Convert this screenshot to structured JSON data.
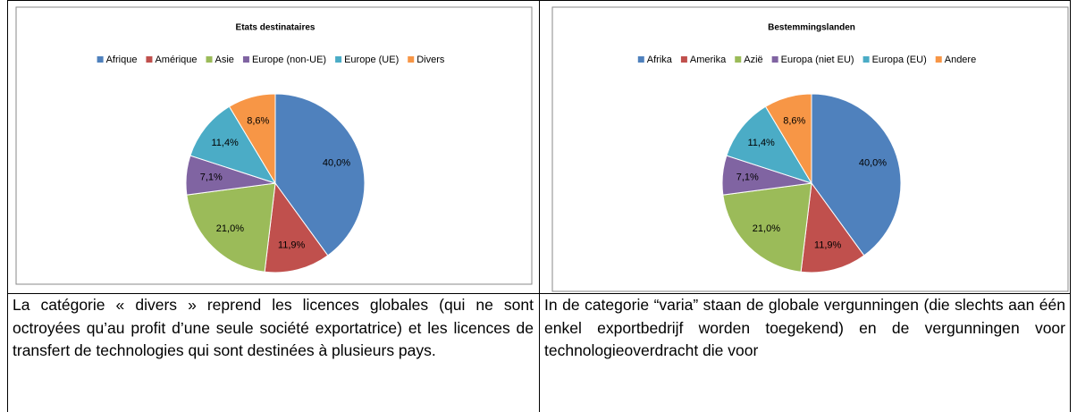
{
  "chart_data": [
    {
      "type": "pie",
      "title": "Etats destinataires",
      "categories": [
        "Afrique",
        "Amérique",
        "Asie",
        "Europe (non-UE)",
        "Europe (UE)",
        "Divers"
      ],
      "values": [
        40.0,
        11.9,
        21.0,
        7.1,
        11.4,
        8.6
      ],
      "value_labels": [
        "40,0%",
        "11,9%",
        "21,0%",
        "7,1%",
        "11,4%",
        "8,6%"
      ],
      "colors": [
        "#4F81BD",
        "#C0504D",
        "#9BBB59",
        "#8064A2",
        "#4BACC6",
        "#F79646"
      ],
      "legend": "top"
    },
    {
      "type": "pie",
      "title": "Bestemmingslanden",
      "categories": [
        "Afrika",
        "Amerika",
        "Azië",
        "Europa (niet EU)",
        "Europa (EU)",
        "Andere"
      ],
      "values": [
        40.0,
        11.9,
        21.0,
        7.1,
        11.4,
        8.6
      ],
      "value_labels": [
        "40,0%",
        "11,9%",
        "21,0%",
        "7,1%",
        "11,4%",
        "8,6%"
      ],
      "colors": [
        "#4F81BD",
        "#C0504D",
        "#9BBB59",
        "#8064A2",
        "#4BACC6",
        "#F79646"
      ],
      "legend": "top"
    }
  ],
  "paragraphs": [
    "La catégorie « divers » reprend les licences globales (qui ne sont octroyées qu’au profit d’une seule société exportatrice) et les licences de transfert de technologies qui sont destinées à plusieurs pays.",
    "In de categorie “varia” staan de globale vergunningen (die slechts aan één enkel exportbedrijf worden toegekend) en de vergunningen voor technologieoverdracht die voor"
  ]
}
